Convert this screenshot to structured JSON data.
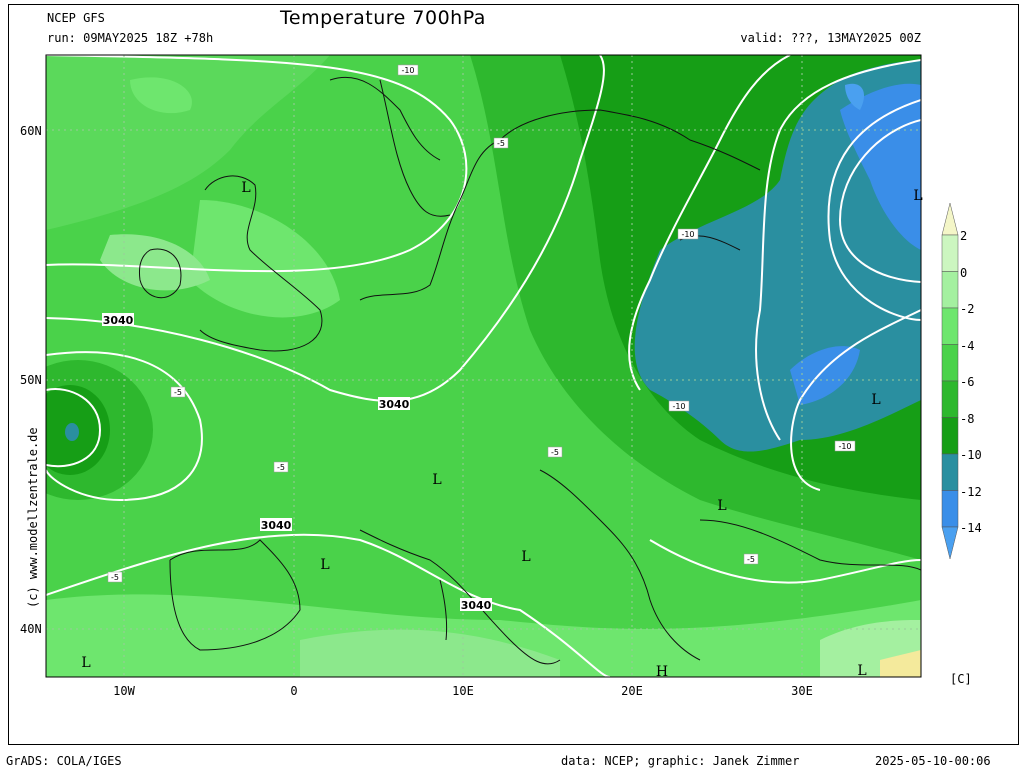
{
  "header": {
    "model": "NCEP GFS",
    "run": "run: 09MAY2025 18Z +78h",
    "title": "Temperature 700hPa",
    "valid": "valid: ???, 13MAY2025 00Z"
  },
  "units": "[C]",
  "watermark": "(c) www.modellzentrale.de",
  "footer": {
    "left": "GrADS: COLA/IGES",
    "data": "data: NCEP; graphic: Janek Zimmer",
    "timestamp": "2025-05-10-00:06"
  },
  "axes": {
    "lat_labels": [
      "60N",
      "50N",
      "40N"
    ],
    "lon_labels": [
      "10W",
      "0",
      "10E",
      "20E",
      "30E"
    ]
  },
  "colorbar": {
    "labels": [
      "2",
      "0",
      "-2",
      "-4",
      "-6",
      "-8",
      "-10",
      "-12",
      "-14"
    ],
    "colors": [
      "#f4f6c8",
      "#ccf6c0",
      "#a4f0a0",
      "#6ee66e",
      "#4ad24a",
      "#2eb82e",
      "#169e16",
      "#2a8fa0",
      "#3a8ee8",
      "#4aa0f0"
    ]
  },
  "contour_labels": {
    "height": [
      "3040",
      "3040",
      "3040",
      "3040"
    ],
    "temp": [
      "-5",
      "-5",
      "-5",
      "-5",
      "-5",
      "-5",
      "-5",
      "-10",
      "-10",
      "-10",
      "-10"
    ]
  },
  "pressure_marks": [
    "L",
    "L",
    "L",
    "L",
    "L",
    "L",
    "L",
    "L",
    "L",
    "H"
  ]
}
